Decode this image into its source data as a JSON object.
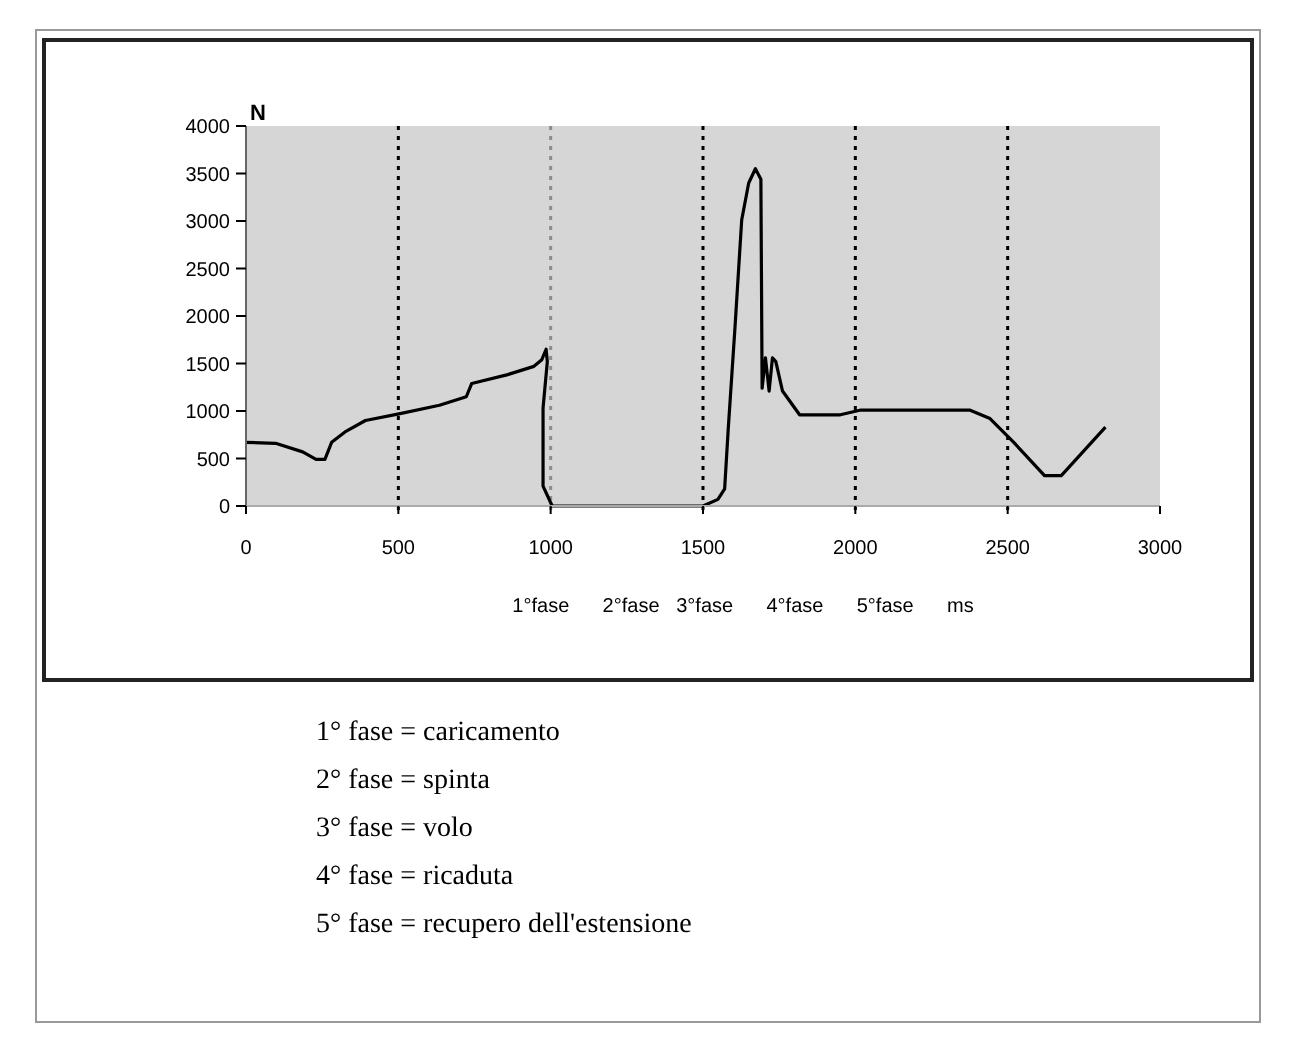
{
  "chart_data": {
    "type": "line",
    "ylabel": "N",
    "xlabel": "1°fase      2°fase   3°fase      4°fase      5°fase      ms",
    "x": [
      0,
      97,
      186,
      230,
      259,
      281,
      325,
      392,
      502,
      635,
      723,
      741,
      856,
      945,
      971,
      985,
      989,
      975,
      975,
      1005,
      1500,
      1549,
      1571,
      1583,
      1605,
      1627,
      1650,
      1672,
      1690,
      1694,
      1705,
      1717,
      1728,
      1739,
      1761,
      1817,
      1951,
      2018,
      2375,
      2442,
      2520,
      2621,
      2676,
      2821
    ],
    "series": [
      {
        "color": "#000000",
        "values": [
          670,
          660,
          570,
          490,
          490,
          670,
          780,
          900,
          970,
          1060,
          1150,
          1290,
          1380,
          1470,
          1540,
          1650,
          1520,
          1030,
          210,
          0,
          0,
          70,
          180,
          820,
          1880,
          3010,
          3400,
          3550,
          3440,
          1240,
          1560,
          1210,
          1560,
          1520,
          1210,
          960,
          960,
          1010,
          1010,
          920,
          670,
          320,
          320,
          830
        ]
      }
    ],
    "xlim": [
      0,
      3000
    ],
    "xticks": [
      0,
      500,
      1000,
      1500,
      2000,
      2500,
      3000
    ],
    "ylim": [
      0,
      4000
    ],
    "yticks": [
      0,
      500,
      1000,
      1500,
      2000,
      2500,
      3000,
      3500,
      4000
    ],
    "grid": false,
    "line_style": "solid",
    "ref_lines": [
      {
        "axis": "x",
        "value": 500,
        "color": "#000000",
        "line_style": "dotted"
      },
      {
        "axis": "x",
        "value": 1000,
        "color": "#8c8c8c",
        "line_style": "dotted"
      },
      {
        "axis": "x",
        "value": 1500,
        "color": "#000000",
        "line_style": "dotted"
      },
      {
        "axis": "x",
        "value": 2000,
        "color": "#000000",
        "line_style": "dotted"
      },
      {
        "axis": "x",
        "value": 2500,
        "color": "#000000",
        "line_style": "dotted"
      }
    ],
    "annotations": [
      "1° fase = caricamento",
      "2° fase = spinta",
      "3° fase = volo",
      "4° fase = ricaduta",
      "5° fase = recupero dell'estensione"
    ]
  }
}
